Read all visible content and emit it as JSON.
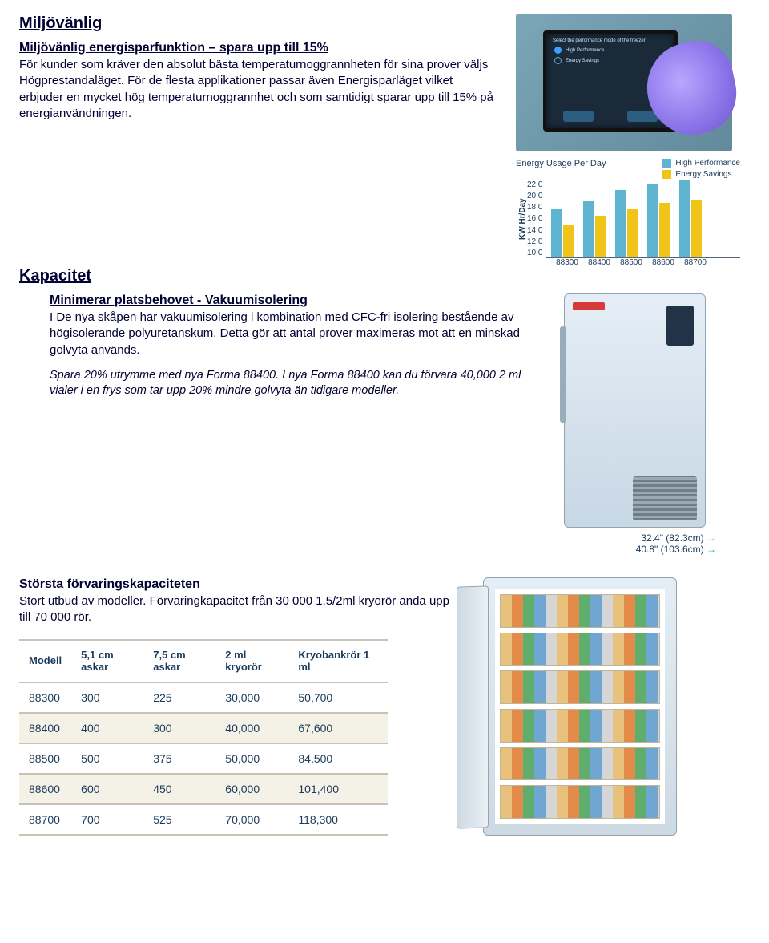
{
  "sections": {
    "env_heading": "Miljövänlig",
    "env_subhead": "Miljövänlig energisparfunktion – spara upp till 15%",
    "env_body": "För kunder som kräver den absolut bästa temperaturnoggrannheten för sina prover väljs Högprestandaläget. För de flesta applikationer passar även Energisparläget vilket erbjuder en mycket hög temperaturnoggrannhet och som samtidigt sparar upp till 15% på energianvändningen.",
    "cap_heading": "Kapacitet",
    "cap_subhead": "Minimerar platsbehovet - Vakuumisolering",
    "cap_body": "I De nya skåpen har vakuumisolering i kombination med CFC-fri isolering bestående av högisolerande polyuretanskum. Detta gör att antal prover maximeras mot att en minskad golvyta används.",
    "cap_note": "Spara 20% utrymme med nya Forma 88400. I nya Forma 88400 kan du förvara 40,000 2 ml vialer i en frys som tar upp 20% mindre golvyta än tidigare modeller.",
    "storage_subhead": "Största förvaringskapaciteten",
    "storage_body": "Stort utbud av modeller. Förvaringkapacitet från 30 000 1,5/2ml kryorör anda upp till 70 000 rör."
  },
  "touchscreen": {
    "title": "Select the performance mode of the freezer",
    "opt1": "High Performance",
    "opt2": "Energy Savings",
    "btn_back": "Back",
    "btn_save": "Save"
  },
  "energy_chart": {
    "title": "Energy Usage Per Day",
    "ylabel": "KW Hr/Day",
    "legend": {
      "hp": "High Performance",
      "es": "Energy Savings"
    },
    "colors": {
      "hp": "#5fb4d0",
      "es": "#f0c419"
    },
    "ymin": 10.0,
    "ymax": 22.0,
    "yticks": [
      "22.0",
      "20.0",
      "18.0",
      "16.0",
      "14.0",
      "12.0",
      "10.0"
    ],
    "categories": [
      "88300",
      "88400",
      "88500",
      "88600",
      "88700"
    ],
    "hp_values": [
      17.5,
      18.8,
      20.5,
      21.5,
      22.0
    ],
    "es_values": [
      15.0,
      16.5,
      17.5,
      18.5,
      19.0
    ]
  },
  "dims": {
    "d1": "32.4\" (82.3cm)",
    "d2": "40.8\" (103.6cm)"
  },
  "capacity_table": {
    "headers": [
      "Modell",
      "5,1 cm askar",
      "7,5 cm askar",
      "2 ml kryorör",
      "Kryobankrör 1 ml"
    ],
    "rows": [
      [
        "88300",
        "300",
        "225",
        "30,000",
        "50,700"
      ],
      [
        "88400",
        "400",
        "300",
        "40,000",
        "67,600"
      ],
      [
        "88500",
        "500",
        "375",
        "50,000",
        "84,500"
      ],
      [
        "88600",
        "600",
        "450",
        "60,000",
        "101,400"
      ],
      [
        "88700",
        "700",
        "525",
        "70,000",
        "118,300"
      ]
    ]
  }
}
